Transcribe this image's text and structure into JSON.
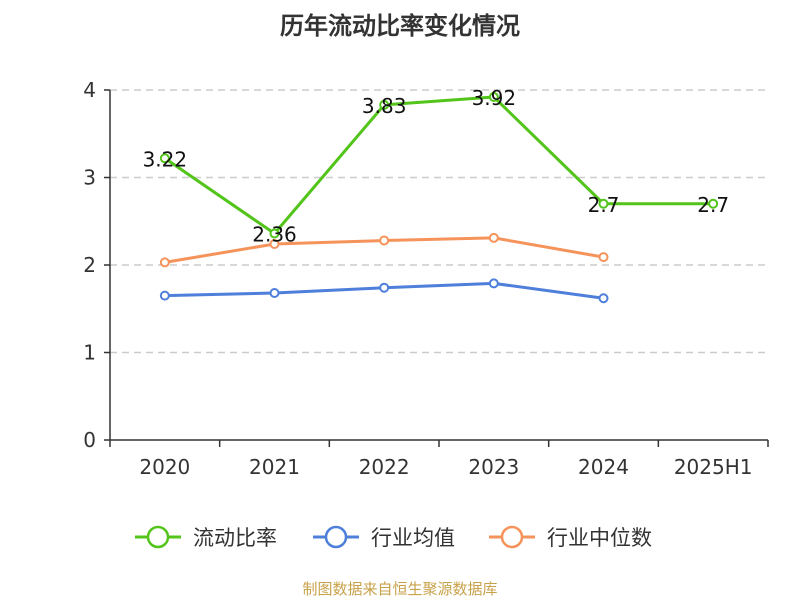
{
  "title": "历年流动比率变化情况",
  "source": "制图数据来自恒生聚源数据库",
  "chart_data": {
    "type": "line",
    "title": "历年流动比率变化情况",
    "categories": [
      "2020",
      "2021",
      "2022",
      "2023",
      "2024",
      "2025H1"
    ],
    "ylim": [
      0,
      4
    ],
    "yticks": [
      0,
      1,
      2,
      3,
      4
    ],
    "grid": true,
    "legend_position": "bottom",
    "series": [
      {
        "name": "流动比率",
        "color": "#52c41a",
        "values": [
          3.22,
          2.36,
          3.83,
          3.92,
          2.7,
          2.7
        ],
        "labels": [
          "3.22",
          "2.36",
          "3.83",
          "3.92",
          "2.7",
          "2.7"
        ]
      },
      {
        "name": "行业均值",
        "color": "#4e7fdb",
        "values": [
          1.65,
          1.68,
          1.74,
          1.79,
          1.62,
          null
        ]
      },
      {
        "name": "行业中位数",
        "color": "#f5935a",
        "values": [
          2.03,
          2.24,
          2.28,
          2.31,
          2.09,
          null
        ]
      }
    ]
  }
}
